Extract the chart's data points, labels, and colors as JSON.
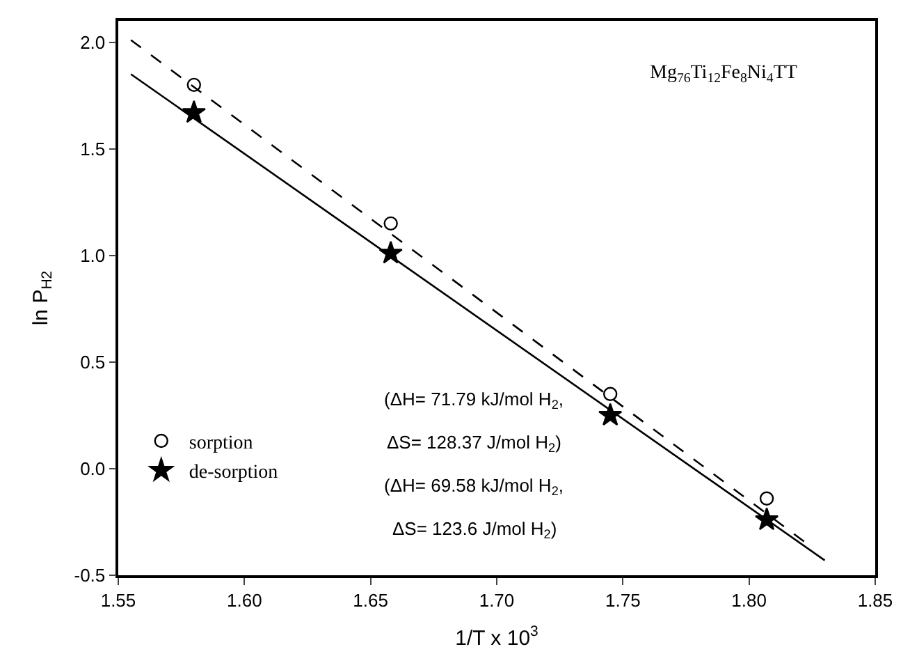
{
  "chart_data": {
    "type": "scatter",
    "xlabel": "1/T x 10$^{3}$",
    "ylabel": "ln P$_{H2}$",
    "xlim": [
      1.55,
      1.85
    ],
    "xticks": [
      1.55,
      {
        "value": 1.6,
        "label": "1.60"
      },
      1.65,
      {
        "value": 1.7,
        "label": "1.70"
      },
      1.75,
      {
        "value": 1.8,
        "label": "1.80"
      },
      1.85
    ],
    "ylim": [
      -0.5,
      2.1
    ],
    "yticks": [
      -0.5,
      {
        "value": 0,
        "label": "0.0"
      },
      0.5,
      {
        "value": 1,
        "label": "1.0"
      },
      1.5,
      {
        "value": 2,
        "label": "2.0"
      }
    ],
    "legend": "left",
    "series": [
      {
        "name": "sorption",
        "color": "#000000",
        "marker": "circle",
        "x": [
          1.58,
          1.658,
          1.745,
          1.807
        ],
        "values": [
          1.8,
          1.15,
          0.35,
          -0.14
        ]
      },
      {
        "name": "de-sorption",
        "color": "#000000",
        "marker": "star",
        "x": [
          1.58,
          1.658,
          1.745,
          1.807
        ],
        "values": [
          1.67,
          1.01,
          0.25,
          -0.24
        ]
      },
      {
        "type": "line",
        "color": "#000000",
        "line_style": "dashed",
        "marker": "none",
        "x": [
          1.555,
          1.825
        ],
        "values": [
          2.01,
          -0.37
        ]
      },
      {
        "type": "line",
        "color": "#000000",
        "line_style": "solid",
        "marker": "none",
        "x": [
          1.555,
          1.83
        ],
        "values": [
          1.85,
          -0.43
        ]
      }
    ],
    "annotations": [
      "Mg$_{76}$Ti$_{12}$Fe$_{8}$Ni$_{4}$TT",
      "(ΔH= 71.79 kJ/mol H$_{2}$,",
      "ΔS= 128.37 J/mol H$_{2}$)",
      "(ΔH= 69.58 kJ/mol H$_{2}$,",
      "ΔS= 123.6 J/mol H$_{2}$)"
    ]
  }
}
